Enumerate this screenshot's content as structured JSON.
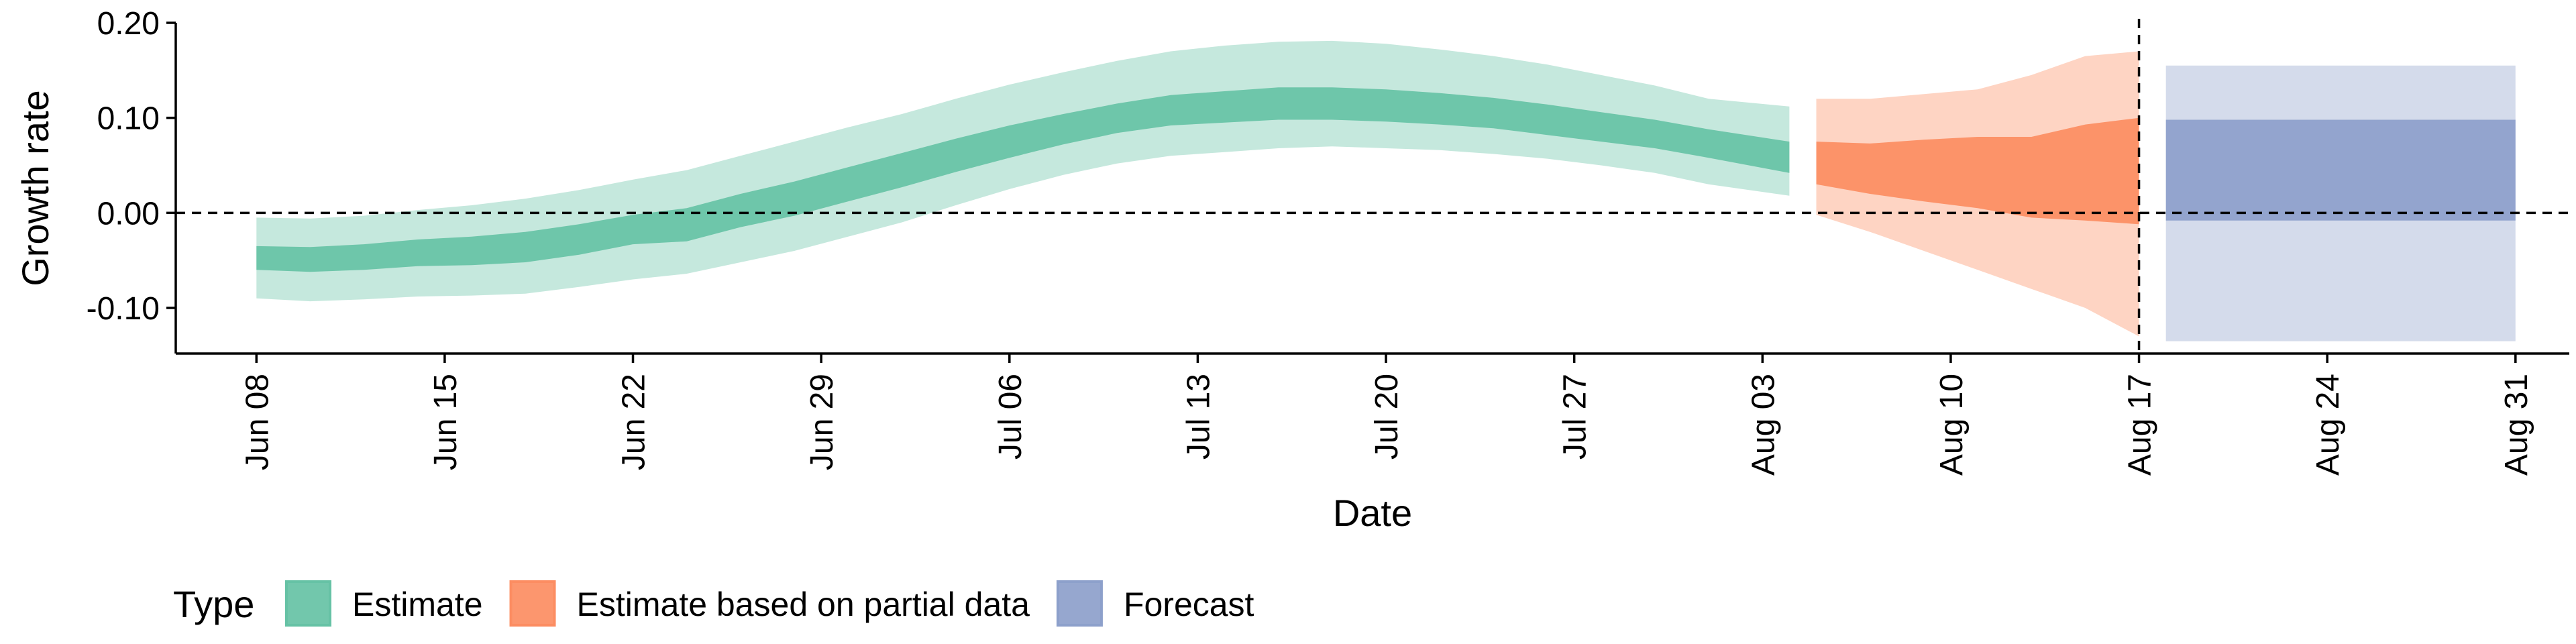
{
  "chart_data": {
    "type": "area",
    "xlabel": "Date",
    "ylabel": "Growth rate",
    "ylim": [
      -0.148,
      0.2
    ],
    "xlim": [
      "2020-06-05",
      "2020-09-02"
    ],
    "y_ticks": [
      {
        "value": -0.1,
        "label": "-0.10"
      },
      {
        "value": 0.0,
        "label": "0.00"
      },
      {
        "value": 0.1,
        "label": "0.10"
      },
      {
        "value": 0.2,
        "label": "0.20"
      }
    ],
    "x_ticks": [
      {
        "date": "2020-06-08",
        "label": "Jun 08"
      },
      {
        "date": "2020-06-15",
        "label": "Jun 15"
      },
      {
        "date": "2020-06-22",
        "label": "Jun 22"
      },
      {
        "date": "2020-06-29",
        "label": "Jun 29"
      },
      {
        "date": "2020-07-06",
        "label": "Jul 06"
      },
      {
        "date": "2020-07-13",
        "label": "Jul 13"
      },
      {
        "date": "2020-07-20",
        "label": "Jul 20"
      },
      {
        "date": "2020-07-27",
        "label": "Jul 27"
      },
      {
        "date": "2020-08-03",
        "label": "Aug 03"
      },
      {
        "date": "2020-08-10",
        "label": "Aug 10"
      },
      {
        "date": "2020-08-17",
        "label": "Aug 17"
      },
      {
        "date": "2020-08-24",
        "label": "Aug 24"
      },
      {
        "date": "2020-08-31",
        "label": "Aug 31"
      }
    ],
    "reference_lines": {
      "horizontal_y": 0.0,
      "vertical_date": "2020-08-17"
    },
    "grid": false,
    "legend": {
      "title": "Type",
      "position": "bottom-left"
    },
    "series": [
      {
        "name": "Estimate",
        "color": "#66c2a5",
        "points": [
          {
            "date": "2020-06-08",
            "lo90": -0.09,
            "lo50": -0.06,
            "hi50": -0.035,
            "hi90": -0.005
          },
          {
            "date": "2020-06-10",
            "lo90": -0.093,
            "lo50": -0.062,
            "hi50": -0.036,
            "hi90": -0.006
          },
          {
            "date": "2020-06-12",
            "lo90": -0.091,
            "lo50": -0.06,
            "hi50": -0.033,
            "hi90": -0.003
          },
          {
            "date": "2020-06-14",
            "lo90": -0.088,
            "lo50": -0.056,
            "hi50": -0.028,
            "hi90": 0.003
          },
          {
            "date": "2020-06-16",
            "lo90": -0.087,
            "lo50": -0.055,
            "hi50": -0.025,
            "hi90": 0.008
          },
          {
            "date": "2020-06-18",
            "lo90": -0.085,
            "lo50": -0.052,
            "hi50": -0.02,
            "hi90": 0.015
          },
          {
            "date": "2020-06-20",
            "lo90": -0.078,
            "lo50": -0.044,
            "hi50": -0.012,
            "hi90": 0.024
          },
          {
            "date": "2020-06-22",
            "lo90": -0.07,
            "lo50": -0.033,
            "hi50": -0.002,
            "hi90": 0.035
          },
          {
            "date": "2020-06-24",
            "lo90": -0.064,
            "lo50": -0.03,
            "hi50": 0.005,
            "hi90": 0.045
          },
          {
            "date": "2020-06-26",
            "lo90": -0.052,
            "lo50": -0.015,
            "hi50": 0.02,
            "hi90": 0.06
          },
          {
            "date": "2020-06-28",
            "lo90": -0.04,
            "lo50": -0.003,
            "hi50": 0.033,
            "hi90": 0.075
          },
          {
            "date": "2020-06-30",
            "lo90": -0.025,
            "lo50": 0.012,
            "hi50": 0.048,
            "hi90": 0.09
          },
          {
            "date": "2020-07-02",
            "lo90": -0.01,
            "lo50": 0.027,
            "hi50": 0.063,
            "hi90": 0.104
          },
          {
            "date": "2020-07-04",
            "lo90": 0.008,
            "lo50": 0.043,
            "hi50": 0.078,
            "hi90": 0.12
          },
          {
            "date": "2020-07-06",
            "lo90": 0.025,
            "lo50": 0.058,
            "hi50": 0.092,
            "hi90": 0.135
          },
          {
            "date": "2020-07-08",
            "lo90": 0.04,
            "lo50": 0.072,
            "hi50": 0.104,
            "hi90": 0.148
          },
          {
            "date": "2020-07-10",
            "lo90": 0.052,
            "lo50": 0.084,
            "hi50": 0.115,
            "hi90": 0.16
          },
          {
            "date": "2020-07-12",
            "lo90": 0.06,
            "lo50": 0.092,
            "hi50": 0.124,
            "hi90": 0.17
          },
          {
            "date": "2020-07-14",
            "lo90": 0.064,
            "lo50": 0.095,
            "hi50": 0.128,
            "hi90": 0.176
          },
          {
            "date": "2020-07-16",
            "lo90": 0.068,
            "lo50": 0.098,
            "hi50": 0.132,
            "hi90": 0.18
          },
          {
            "date": "2020-07-18",
            "lo90": 0.07,
            "lo50": 0.098,
            "hi50": 0.132,
            "hi90": 0.181
          },
          {
            "date": "2020-07-20",
            "lo90": 0.068,
            "lo50": 0.096,
            "hi50": 0.13,
            "hi90": 0.178
          },
          {
            "date": "2020-07-22",
            "lo90": 0.066,
            "lo50": 0.093,
            "hi50": 0.126,
            "hi90": 0.172
          },
          {
            "date": "2020-07-24",
            "lo90": 0.062,
            "lo50": 0.089,
            "hi50": 0.121,
            "hi90": 0.165
          },
          {
            "date": "2020-07-26",
            "lo90": 0.057,
            "lo50": 0.082,
            "hi50": 0.114,
            "hi90": 0.156
          },
          {
            "date": "2020-07-28",
            "lo90": 0.05,
            "lo50": 0.075,
            "hi50": 0.106,
            "hi90": 0.145
          },
          {
            "date": "2020-07-30",
            "lo90": 0.042,
            "lo50": 0.068,
            "hi50": 0.098,
            "hi90": 0.134
          },
          {
            "date": "2020-08-01",
            "lo90": 0.03,
            "lo50": 0.058,
            "hi50": 0.088,
            "hi90": 0.12
          },
          {
            "date": "2020-08-04",
            "lo90": 0.018,
            "lo50": 0.042,
            "hi50": 0.075,
            "hi90": 0.112
          }
        ]
      },
      {
        "name": "Estimate based on partial data",
        "color": "#fc8d62",
        "points": [
          {
            "date": "2020-08-05",
            "lo90": -0.002,
            "lo50": 0.03,
            "hi50": 0.075,
            "hi90": 0.12
          },
          {
            "date": "2020-08-07",
            "lo90": -0.02,
            "lo50": 0.02,
            "hi50": 0.073,
            "hi90": 0.12
          },
          {
            "date": "2020-08-09",
            "lo90": -0.04,
            "lo50": 0.012,
            "hi50": 0.077,
            "hi90": 0.125
          },
          {
            "date": "2020-08-11",
            "lo90": -0.06,
            "lo50": 0.005,
            "hi50": 0.08,
            "hi90": 0.13
          },
          {
            "date": "2020-08-13",
            "lo90": -0.08,
            "lo50": -0.005,
            "hi50": 0.08,
            "hi90": 0.145
          },
          {
            "date": "2020-08-15",
            "lo90": -0.1,
            "lo50": -0.008,
            "hi50": 0.093,
            "hi90": 0.165
          },
          {
            "date": "2020-08-17",
            "lo90": -0.13,
            "lo50": -0.012,
            "hi50": 0.1,
            "hi90": 0.17
          }
        ]
      },
      {
        "name": "Forecast",
        "color": "#8da0cb",
        "points": [
          {
            "date": "2020-08-18",
            "lo90": -0.135,
            "lo50": -0.008,
            "hi50": 0.098,
            "hi90": 0.155
          },
          {
            "date": "2020-08-31",
            "lo90": -0.135,
            "lo50": -0.008,
            "hi50": 0.098,
            "hi90": 0.155
          }
        ]
      }
    ]
  }
}
